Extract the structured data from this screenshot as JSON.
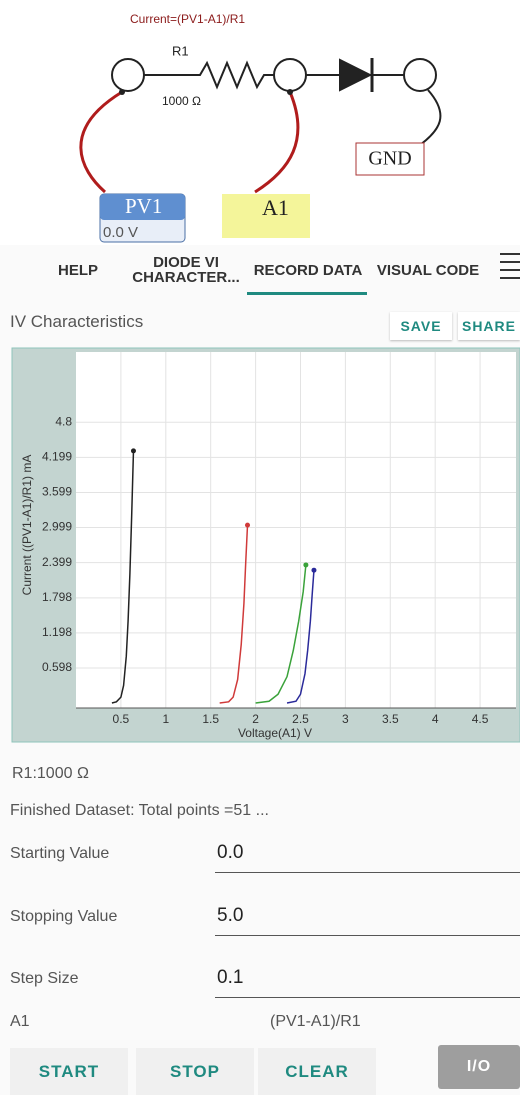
{
  "circuit": {
    "formula": "Current=(PV1-A1)/R1",
    "resistor_name": "R1",
    "resistance": "1000 Ω",
    "ground": "GND",
    "source": "PV1",
    "source_value": "0.0 V",
    "probe": "A1"
  },
  "tabs": [
    "HELP",
    "DIODE VI CHARACTER...",
    "RECORD DATA",
    "VISUAL CODE"
  ],
  "panel": {
    "title": "IV Characteristics",
    "buttons": [
      "SAVE",
      "SHARE"
    ]
  },
  "chart_data": {
    "type": "line",
    "xlabel": "Voltage(A1) V",
    "ylabel": "Current ((PV1-A1)/R1) mA",
    "xlim": [
      0,
      4.9
    ],
    "ylim": [
      0,
      6
    ],
    "xticks": [
      0.5,
      1,
      1.5,
      2,
      2.5,
      3,
      3.5,
      4,
      4.5
    ],
    "yticks": [
      0.598,
      1.198,
      1.798,
      2.399,
      2.999,
      3.599,
      4.199,
      4.8
    ],
    "grid": true,
    "series": [
      {
        "color": "#222222",
        "x": [
          0.4,
          0.45,
          0.5,
          0.53,
          0.56,
          0.58,
          0.6,
          0.62,
          0.64
        ],
        "values": [
          0,
          0.02,
          0.1,
          0.3,
          0.8,
          1.4,
          2.2,
          3.2,
          4.31
        ]
      },
      {
        "color": "#d03a3a",
        "x": [
          1.6,
          1.7,
          1.75,
          1.8,
          1.84,
          1.87,
          1.89,
          1.91
        ],
        "values": [
          0,
          0.02,
          0.1,
          0.4,
          1.0,
          1.7,
          2.4,
          3.04
        ]
      },
      {
        "color": "#3aa23a",
        "x": [
          2.0,
          2.15,
          2.25,
          2.35,
          2.42,
          2.48,
          2.53,
          2.56
        ],
        "values": [
          0,
          0.03,
          0.15,
          0.45,
          0.9,
          1.4,
          1.9,
          2.36
        ]
      },
      {
        "color": "#2a2a9a",
        "x": [
          2.35,
          2.45,
          2.5,
          2.55,
          2.58,
          2.61,
          2.63,
          2.65
        ],
        "values": [
          0,
          0.03,
          0.15,
          0.5,
          0.9,
          1.4,
          1.85,
          2.27
        ]
      }
    ]
  },
  "info": {
    "resistor": "R1:1000 Ω",
    "status": "Finished Dataset: Total points =51 ..."
  },
  "form": {
    "fields": [
      {
        "label": "Starting Value",
        "value": "0.0"
      },
      {
        "label": "Stopping Value",
        "value": "5.0"
      },
      {
        "label": "Step Size",
        "value": "0.1"
      }
    ]
  },
  "channels": {
    "x": "A1",
    "y": "(PV1-A1)/R1"
  },
  "actions": [
    "START",
    "STOP",
    "CLEAR",
    "I/O"
  ]
}
